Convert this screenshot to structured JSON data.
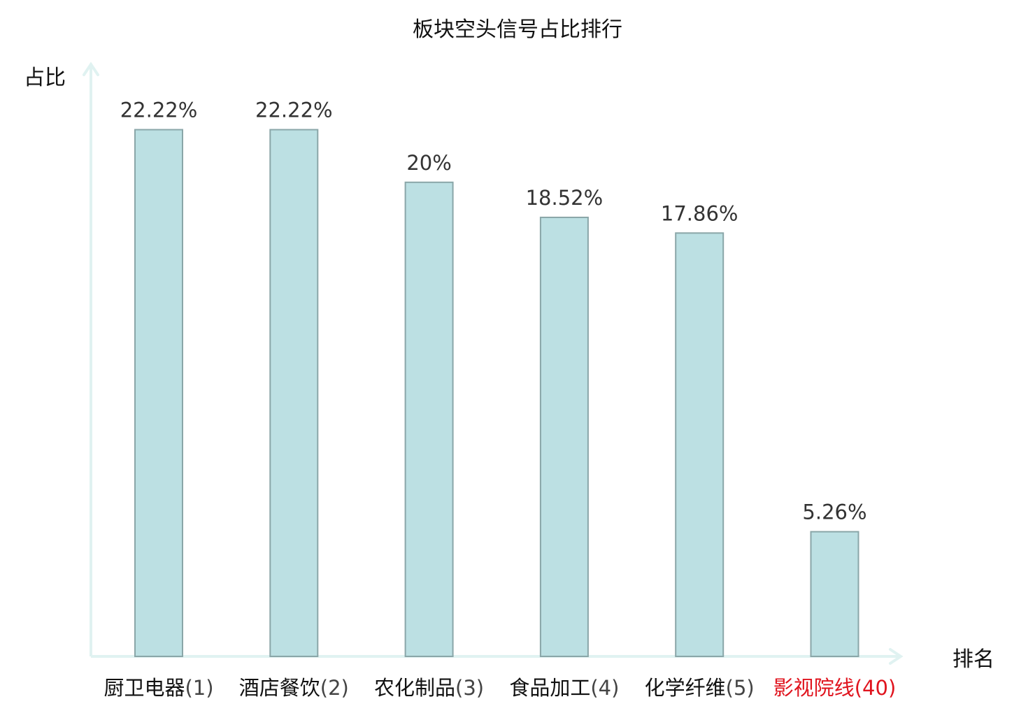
{
  "chart_data": {
    "type": "bar",
    "title": "板块空头信号占比排行",
    "ylabel": "占比",
    "xlabel": "排名",
    "categories": [
      {
        "name": "厨卫电器",
        "rank": "(1)",
        "highlight": false
      },
      {
        "name": "酒店餐饮",
        "rank": "(2)",
        "highlight": false
      },
      {
        "name": "农化制品",
        "rank": "(3)",
        "highlight": false
      },
      {
        "name": "食品加工",
        "rank": "(4)",
        "highlight": false
      },
      {
        "name": "化学纤维",
        "rank": "(5)",
        "highlight": false
      },
      {
        "name": "影视院线",
        "rank": "(40)",
        "highlight": true
      }
    ],
    "values": [
      22.22,
      22.22,
      20,
      18.52,
      17.86,
      5.26
    ],
    "value_labels": [
      "22.22%",
      "22.22%",
      "20%",
      "18.52%",
      "17.86%",
      "5.26%"
    ],
    "ylim": [
      0,
      25
    ],
    "grid": false,
    "colors": {
      "bar_fill": "#bce0e3",
      "bar_stroke": "#8aa6a8",
      "axis": "#e0f2f1",
      "label_normal": "#111111",
      "rank_normal": "#444444",
      "highlight": "#e0141e"
    }
  }
}
